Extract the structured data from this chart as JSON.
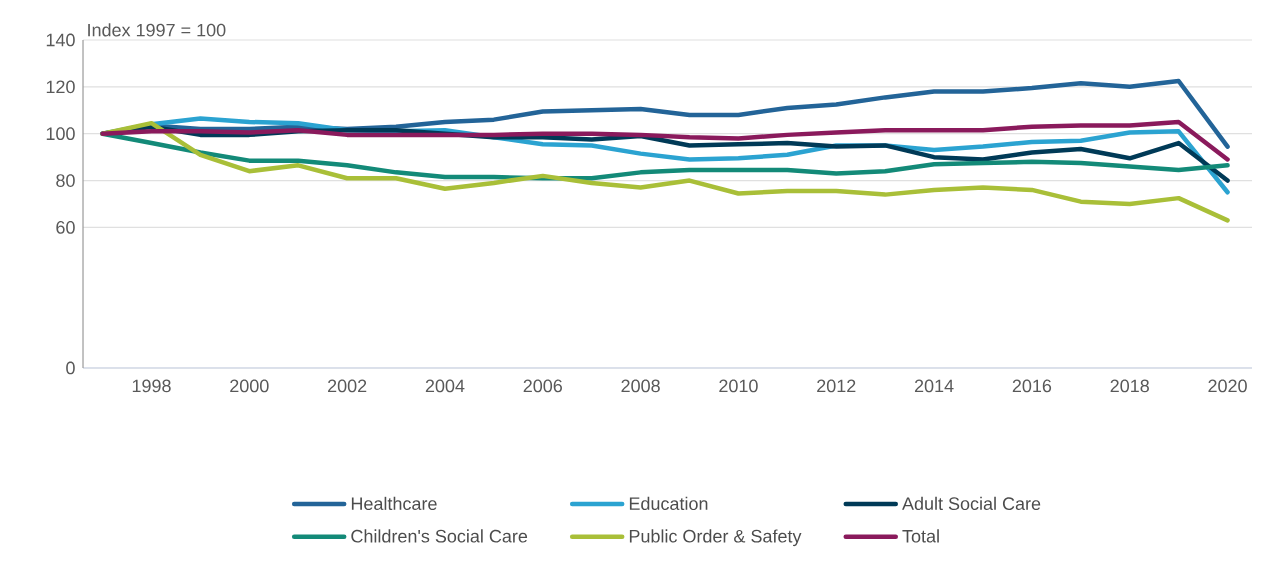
{
  "chart_data": {
    "type": "line",
    "ylabel": "Index 1997 = 100",
    "x": [
      1997,
      1998,
      1999,
      2000,
      2001,
      2002,
      2003,
      2004,
      2005,
      2006,
      2007,
      2008,
      2009,
      2010,
      2011,
      2012,
      2013,
      2014,
      2015,
      2016,
      2017,
      2018,
      2019,
      2020
    ],
    "series": [
      {
        "name": "Healthcare",
        "color": "#236498",
        "values": [
          100,
          103.5,
          102,
          102,
          103,
          102,
          103,
          105,
          106,
          109.5,
          110,
          110.5,
          108,
          108,
          111,
          112.5,
          115.5,
          118,
          118,
          119.5,
          121.5,
          120,
          122.5,
          94.5
        ]
      },
      {
        "name": "Education",
        "color": "#2ba3d1",
        "values": [
          100,
          104,
          106.5,
          105,
          104.5,
          101.5,
          101,
          101.5,
          98.5,
          95.5,
          95,
          91.5,
          89,
          89.5,
          91,
          95,
          95,
          93,
          94.5,
          96.5,
          97,
          100.5,
          101,
          75
        ]
      },
      {
        "name": "Adult Social Care",
        "color": "#003a57",
        "values": [
          100,
          103,
          99.5,
          99.5,
          101,
          101.5,
          101.5,
          100,
          98.5,
          98.5,
          97.5,
          99,
          95,
          95.5,
          96,
          94.5,
          95,
          90,
          89,
          92,
          93.5,
          89.5,
          96,
          80
        ]
      },
      {
        "name": "Children's Social Care",
        "color": "#138a78",
        "values": [
          100,
          96,
          92,
          88.5,
          88.5,
          86.5,
          83.5,
          81.5,
          81.5,
          81,
          81,
          83.5,
          84.5,
          84.5,
          84.5,
          83,
          84,
          87,
          87.5,
          88,
          87.5,
          86,
          84.5,
          86.5
        ]
      },
      {
        "name": "Public Order & Safety",
        "color": "#a9bf38",
        "values": [
          100,
          104.5,
          91,
          84,
          86.5,
          81,
          81,
          76.5,
          79,
          82,
          79,
          77,
          80,
          74.5,
          75.5,
          75.5,
          74,
          76,
          77,
          76,
          71,
          70,
          72.5,
          63
        ]
      },
      {
        "name": "Total",
        "color": "#8a1a5c",
        "values": [
          100,
          101,
          101,
          100.5,
          101.5,
          99.5,
          99.5,
          99.5,
          99.5,
          100,
          100,
          99.5,
          98.5,
          98,
          99.5,
          100.5,
          101.5,
          101.5,
          101.5,
          103,
          103.5,
          103.5,
          105,
          89
        ]
      }
    ],
    "xlim": [
      1996.6,
      2020.5
    ],
    "xticks": [
      1998,
      2000,
      2002,
      2004,
      2006,
      2008,
      2010,
      2012,
      2014,
      2016,
      2018,
      2020
    ],
    "ylim": [
      0,
      140
    ],
    "yticks": [
      0,
      60,
      80,
      100,
      120,
      140
    ],
    "grid": "y",
    "legend": "bottom",
    "marker": "none",
    "line_style": "solid"
  }
}
